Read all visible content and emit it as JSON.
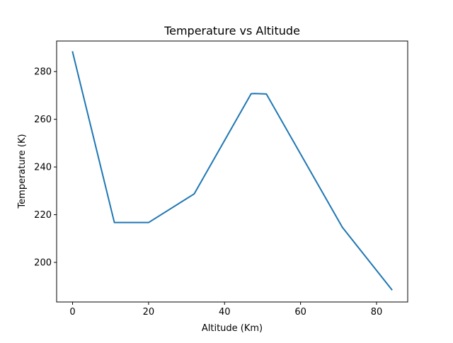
{
  "chart_data": {
    "type": "line",
    "title": "Temperature vs Altitude",
    "xlabel": "Altitude (Km)",
    "ylabel": "Temperature (K)",
    "xlim": [
      -4.2,
      88.2
    ],
    "ylim": [
      183.4,
      292.8
    ],
    "xticks": [
      0,
      20,
      40,
      60,
      80
    ],
    "yticks": [
      200,
      220,
      240,
      260,
      280
    ],
    "grid": false,
    "series": [
      {
        "color": "#1f77b4",
        "x": [
          0,
          11,
          20,
          32,
          47,
          48,
          51,
          71,
          84
        ],
        "y": [
          288.2,
          216.7,
          216.7,
          228.7,
          270.7,
          270.8,
          270.6,
          214.7,
          188.6
        ]
      }
    ]
  }
}
